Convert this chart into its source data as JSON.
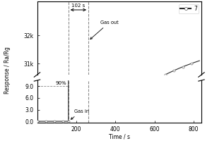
{
  "title": "",
  "xlabel": "Time / s",
  "ylabel": "Response / Ra/Rg",
  "legend_label": "7",
  "gas_in_time": 160,
  "gas_out_time": 262,
  "response_time_label": "102 s",
  "pct_label": "90%",
  "gas_in_label": "Gas in",
  "gas_out_label": "Gas out",
  "line_color": "#2a2a2a",
  "marker_color": "#777777",
  "background_color": "#ffffff",
  "xlim": [
    0,
    840
  ],
  "yticks_low": [
    0.0,
    3.0,
    6.0,
    9.0
  ],
  "yticks_high": [
    31000,
    32000
  ],
  "ytick_labels_low": [
    "0.0",
    "3.0",
    "6.0",
    "9.0"
  ],
  "ytick_labels_high": [
    "31k",
    "32k"
  ],
  "x_ticks": [
    200,
    400,
    600,
    800
  ],
  "y_low_min": -0.3,
  "y_low_max": 10.5,
  "y_high_min": 30600,
  "y_high_max": 33200,
  "y_max_response": 32000,
  "gas_in_x": 160,
  "gas_out_x": 262
}
